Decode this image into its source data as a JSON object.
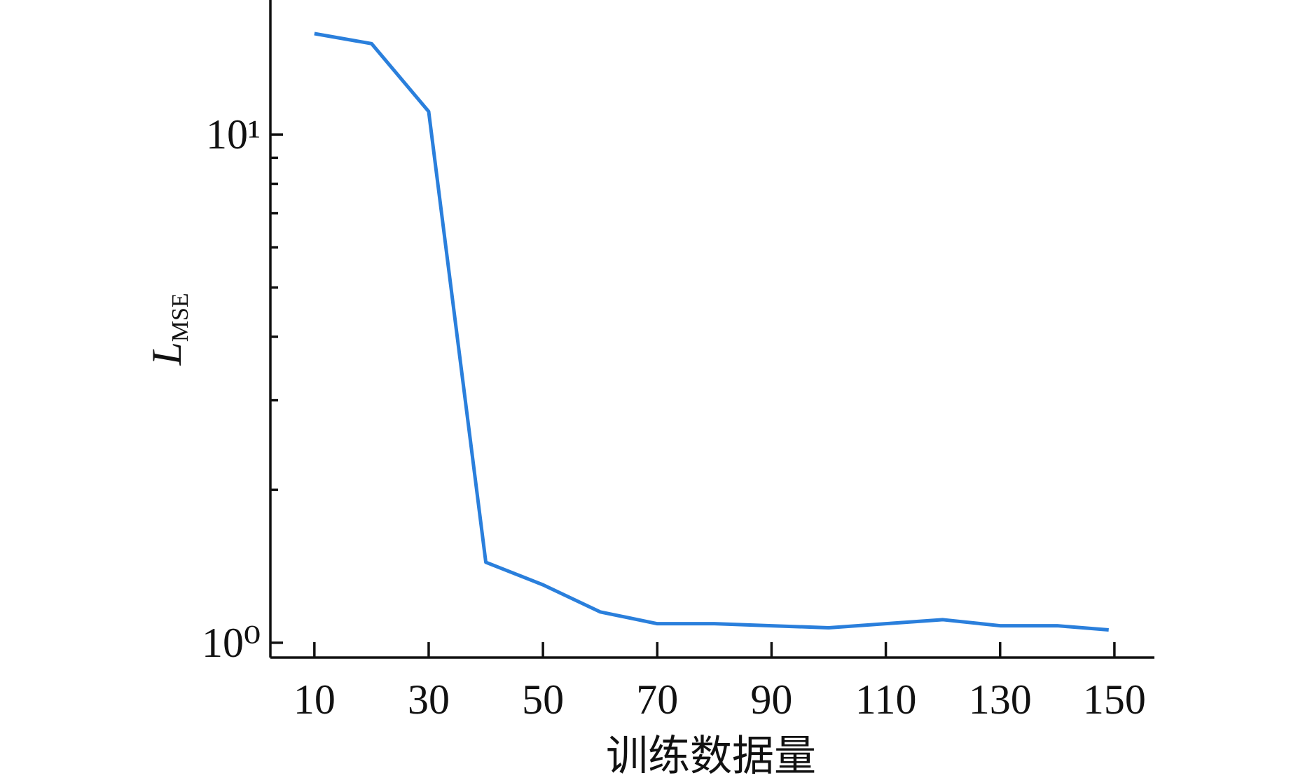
{
  "chart_data": {
    "type": "line",
    "xlabel": "训练数据量",
    "ylabel": "L",
    "ylabel_sub": "MSE",
    "x": [
      10,
      20,
      30,
      40,
      50,
      60,
      70,
      80,
      90,
      100,
      110,
      120,
      130,
      140,
      149
    ],
    "series": [
      {
        "color": "#2a7fdc",
        "values": [
          15.8,
          15.1,
          11.1,
          1.44,
          1.3,
          1.15,
          1.09,
          1.09,
          1.08,
          1.07,
          1.09,
          1.11,
          1.08,
          1.08,
          1.06
        ]
      }
    ],
    "xlim": [
      2.3,
      157
    ],
    "xticks": [
      10,
      30,
      50,
      70,
      90,
      110,
      130,
      150
    ],
    "ylim": [
      0.935,
      18.4
    ],
    "log_y": true,
    "yticks": [
      {
        "value": 1,
        "label": "10⁰"
      },
      {
        "value": 10,
        "label": "10¹"
      }
    ],
    "yminor_ticks": [
      2,
      3,
      4,
      5,
      6,
      7,
      8,
      9
    ]
  }
}
